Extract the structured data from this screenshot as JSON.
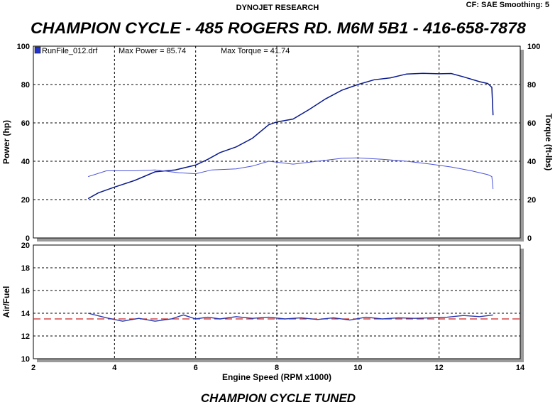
{
  "header": {
    "company": "DYNOJET RESEARCH",
    "settings": "CF: SAE  Smoothing: 5",
    "title": "CHAMPION CYCLE - 485 ROGERS RD. M6M 5B1 - 416-658-7878",
    "footer": "CHAMPION CYCLE TUNED"
  },
  "legend": {
    "run_label": "RunFile_012.drf",
    "max_power_label": "Max Power = 85.74",
    "max_torque_label": "Max Torque = 41.74"
  },
  "colors": {
    "power": "#0a1a8c",
    "torque": "#4a52d8",
    "air_fuel": "#2a3ab0",
    "target": "#cc2020",
    "legend_swatch": "#2233cc"
  },
  "chart_data": [
    {
      "type": "line",
      "panel": "power-torque",
      "xlabel": "Engine Speed (RPM x1000)",
      "ylabel": "Power (hp)",
      "y2label": "Torque (ft-lbs)",
      "xlim": [
        2,
        14
      ],
      "ylim": [
        0,
        100
      ],
      "y2lim": [
        0,
        100
      ],
      "xticks": [
        "2",
        "4",
        "6",
        "8",
        "10",
        "12",
        "14"
      ],
      "yticks": [
        "0",
        "20",
        "40",
        "60",
        "80",
        "100"
      ],
      "grid": true,
      "legend_placement": "top-left",
      "series": [
        {
          "key": "power",
          "x": [
            3.35,
            3.6,
            4.0,
            4.5,
            5.0,
            5.5,
            6.0,
            6.3,
            6.6,
            7.0,
            7.4,
            7.8,
            8.0,
            8.4,
            8.8,
            9.2,
            9.6,
            10.0,
            10.4,
            10.8,
            11.2,
            11.6,
            12.0,
            12.3,
            12.6,
            13.0,
            13.2,
            13.3,
            13.33
          ],
          "y": [
            20.5,
            23.5,
            26.5,
            30.0,
            34.5,
            35.5,
            38.0,
            41.0,
            44.5,
            47.5,
            52.0,
            59.0,
            60.5,
            62.0,
            67.0,
            72.5,
            77.0,
            80.0,
            82.5,
            83.5,
            85.5,
            85.8,
            85.6,
            85.74,
            84.0,
            81.5,
            80.5,
            78.5,
            64.0
          ]
        },
        {
          "key": "torque",
          "x": [
            3.35,
            3.8,
            4.5,
            5.0,
            5.6,
            6.0,
            6.4,
            7.0,
            7.4,
            7.8,
            8.4,
            9.0,
            9.6,
            10.0,
            10.6,
            11.2,
            11.8,
            12.3,
            12.8,
            13.2,
            13.3,
            13.33
          ],
          "y": [
            32.0,
            35.0,
            35.0,
            35.5,
            34.0,
            33.5,
            35.5,
            36.0,
            37.5,
            40.0,
            38.5,
            40.0,
            41.5,
            41.74,
            41.0,
            40.0,
            38.5,
            37.0,
            35.0,
            33.0,
            32.0,
            25.5
          ]
        }
      ]
    },
    {
      "type": "line",
      "panel": "air-fuel",
      "xlabel": "Engine Speed (RPM x1000)",
      "ylabel": "Air/Fuel",
      "xlim": [
        2,
        14
      ],
      "ylim": [
        10,
        20
      ],
      "xticks": [
        "2",
        "4",
        "6",
        "8",
        "10",
        "12",
        "14"
      ],
      "yticks": [
        "10",
        "12",
        "14",
        "16",
        "18",
        "20"
      ],
      "grid": true,
      "target_afr": 13.5,
      "series": [
        {
          "key": "air_fuel",
          "x": [
            3.35,
            3.8,
            4.2,
            4.6,
            5.0,
            5.4,
            5.7,
            6.0,
            6.3,
            6.6,
            7.0,
            7.4,
            7.8,
            8.2,
            8.6,
            9.0,
            9.4,
            9.8,
            10.2,
            10.6,
            11.0,
            11.4,
            11.8,
            12.2,
            12.6,
            13.0,
            13.33
          ],
          "y": [
            14.0,
            13.6,
            13.3,
            13.55,
            13.3,
            13.5,
            13.85,
            13.5,
            13.65,
            13.5,
            13.7,
            13.55,
            13.65,
            13.5,
            13.6,
            13.45,
            13.6,
            13.4,
            13.65,
            13.5,
            13.6,
            13.55,
            13.6,
            13.65,
            13.8,
            13.7,
            13.85
          ]
        }
      ]
    }
  ]
}
